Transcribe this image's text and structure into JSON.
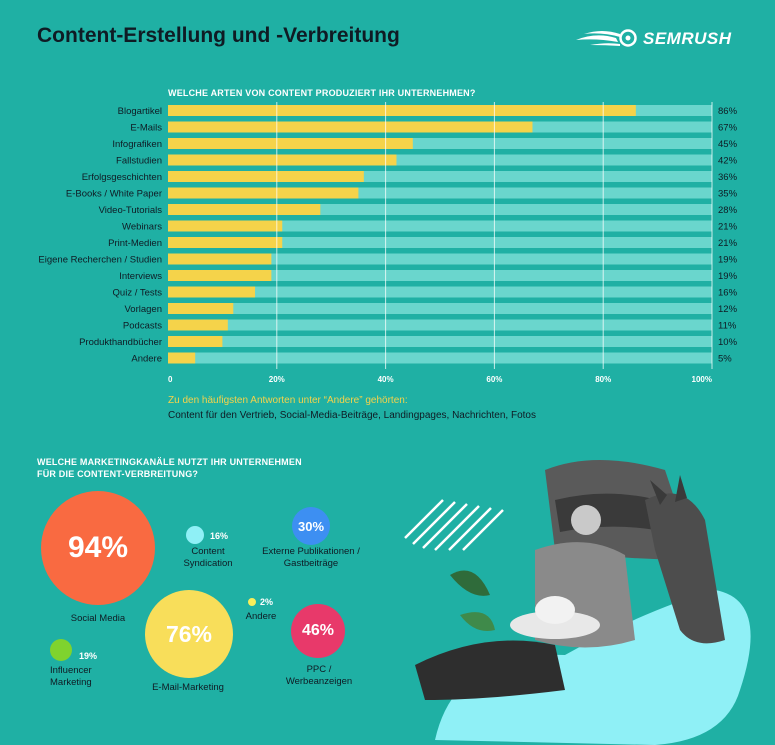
{
  "title": "Content-Erstellung und -Verbreitung",
  "logo_text": "SEMRUSH",
  "colors": {
    "background": "#1fb0a4",
    "bar_fill": "#f5d34a",
    "bar_track": "#6ad6cd"
  },
  "chart_data": {
    "type": "bar",
    "orientation": "horizontal",
    "title": "WELCHE ARTEN VON CONTENT PRODUZIERT IHR UNTERNEHMEN?",
    "categories": [
      "Blogartikel",
      "E-Mails",
      "Infografiken",
      "Fallstudien",
      "Erfolgsgeschichten",
      "E-Books / White Paper",
      "Video-Tutorials",
      "Webinars",
      "Print-Medien",
      "Eigene Recherchen / Studien",
      "Interviews",
      "Quiz / Tests",
      "Vorlagen",
      "Podcasts",
      "Produkthandbücher",
      "Andere"
    ],
    "values": [
      86,
      67,
      45,
      42,
      36,
      35,
      28,
      21,
      21,
      19,
      19,
      16,
      12,
      11,
      10,
      5
    ],
    "value_labels": [
      "86%",
      "67%",
      "45%",
      "42%",
      "36%",
      "35%",
      "28%",
      "21%",
      "21%",
      "19%",
      "19%",
      "16%",
      "12%",
      "11%",
      "10%",
      "5%"
    ],
    "xlim": [
      0,
      100
    ],
    "x_ticks": [
      "0",
      "20%",
      "40%",
      "60%",
      "80%",
      "100%"
    ],
    "grid": true
  },
  "note": {
    "label": "Zu den häufigsten Antworten unter “Andere” gehörten:",
    "text": "Content für den Vertrieb, Social-Media-Beiträge, Landingpages, Nachrichten, Fotos"
  },
  "channels": {
    "title_line1": "WELCHE MARKETINGKANÄLE NUTZT IHR UNTERNEHMEN",
    "title_line2": "FÜR DIE CONTENT-VERBREITUNG?",
    "social": {
      "pct": "94%",
      "value": 94,
      "label": "Social Media",
      "color": "#f96a41"
    },
    "syndication": {
      "pct": "16%",
      "value": 16,
      "label1": "Content",
      "label2": "Syndication",
      "color": "#8ff0f6"
    },
    "external": {
      "pct": "30%",
      "value": 30,
      "label1": "Externe Publikationen /",
      "label2": "Gastbeiträge",
      "color": "#3d8ff2"
    },
    "email": {
      "pct": "76%",
      "value": 76,
      "label": "E-Mail-Marketing",
      "color": "#f8de5a"
    },
    "other": {
      "pct": "2%",
      "value": 2,
      "label": "Andere",
      "color": "#f8ee5a"
    },
    "ppc": {
      "pct": "46%",
      "value": 46,
      "label1": "PPC /",
      "label2": "Werbeanzeigen",
      "color": "#e8396a"
    },
    "influencer": {
      "pct": "19%",
      "value": 19,
      "label1": "Influencer",
      "label2": "Marketing",
      "color": "#7fd32e"
    }
  }
}
